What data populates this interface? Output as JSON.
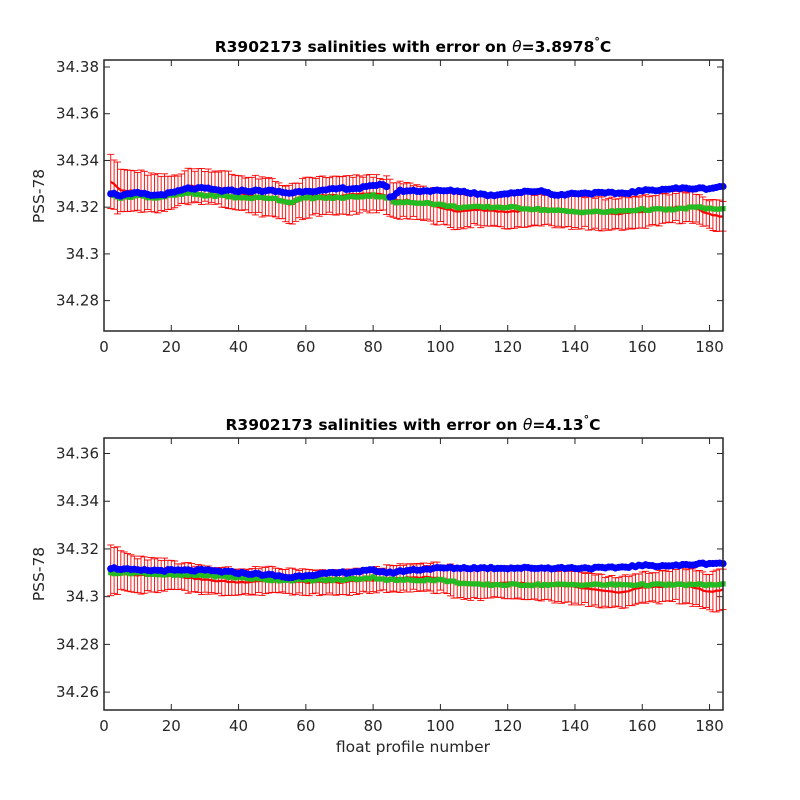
{
  "chart_data": [
    {
      "type": "line",
      "title_prefix": "R3902173 salinities with error on ",
      "title_theta": "θ",
      "title_value": "=3.8978",
      "title_degree": "°",
      "title_unit": "C",
      "xlabel": "",
      "ylabel": "PSS-78",
      "xlim": [
        0,
        184
      ],
      "ylim": [
        34.267,
        34.383
      ],
      "xticks": [
        0,
        20,
        40,
        60,
        80,
        100,
        120,
        140,
        160,
        180
      ],
      "yticks": [
        34.28,
        34.3,
        34.32,
        34.34,
        34.36,
        34.38
      ],
      "ytick_labels": [
        "34.28",
        "34.3",
        "34.32",
        "34.34",
        "34.36",
        "34.38"
      ],
      "x_range": [
        2,
        184
      ],
      "colors": {
        "blue": "#0000ff",
        "green": "#22bb22",
        "red": "#ff0000"
      },
      "series": [
        {
          "role": "blue-markers",
          "keypoints": [
            [
              2,
              34.326
            ],
            [
              5,
              34.325
            ],
            [
              10,
              34.326
            ],
            [
              15,
              34.325
            ],
            [
              20,
              34.326
            ],
            [
              25,
              34.328
            ],
            [
              30,
              34.328
            ],
            [
              35,
              34.327
            ],
            [
              40,
              34.327
            ],
            [
              45,
              34.327
            ],
            [
              50,
              34.327
            ],
            [
              55,
              34.326
            ],
            [
              60,
              34.327
            ],
            [
              65,
              34.327
            ],
            [
              70,
              34.328
            ],
            [
              75,
              34.328
            ],
            [
              80,
              34.329
            ],
            [
              82,
              34.33
            ],
            [
              84,
              34.329
            ],
            [
              85,
              34.324
            ],
            [
              86,
              34.325
            ],
            [
              88,
              34.327
            ],
            [
              95,
              34.327
            ],
            [
              100,
              34.327
            ],
            [
              105,
              34.327
            ],
            [
              110,
              34.326
            ],
            [
              115,
              34.325
            ],
            [
              120,
              34.326
            ],
            [
              130,
              34.327
            ],
            [
              135,
              34.325
            ],
            [
              140,
              34.326
            ],
            [
              150,
              34.326
            ],
            [
              155,
              34.326
            ],
            [
              160,
              34.327
            ],
            [
              170,
              34.328
            ],
            [
              180,
              34.328
            ],
            [
              184,
              34.329
            ]
          ]
        },
        {
          "role": "green-markers",
          "keypoints": [
            [
              2,
              34.326
            ],
            [
              5,
              34.324
            ],
            [
              10,
              34.325
            ],
            [
              15,
              34.324
            ],
            [
              20,
              34.325
            ],
            [
              25,
              34.326
            ],
            [
              30,
              34.325
            ],
            [
              35,
              34.325
            ],
            [
              40,
              34.324
            ],
            [
              50,
              34.324
            ],
            [
              55,
              34.322
            ],
            [
              60,
              34.324
            ],
            [
              65,
              34.324
            ],
            [
              70,
              34.324
            ],
            [
              80,
              34.325
            ],
            [
              85,
              34.324
            ],
            [
              86,
              34.322
            ],
            [
              88,
              34.322
            ],
            [
              95,
              34.322
            ],
            [
              100,
              34.321
            ],
            [
              105,
              34.32
            ],
            [
              110,
              34.32
            ],
            [
              120,
              34.32
            ],
            [
              130,
              34.319
            ],
            [
              140,
              34.318
            ],
            [
              150,
              34.318
            ],
            [
              160,
              34.319
            ],
            [
              170,
              34.319
            ],
            [
              175,
              34.32
            ],
            [
              184,
              34.319
            ]
          ]
        },
        {
          "role": "red-line",
          "keypoints": [
            [
              2,
              34.331
            ],
            [
              5,
              34.327
            ],
            [
              10,
              34.327
            ],
            [
              15,
              34.326
            ],
            [
              20,
              34.326
            ],
            [
              25,
              34.329
            ],
            [
              30,
              34.329
            ],
            [
              35,
              34.328
            ],
            [
              40,
              34.326
            ],
            [
              50,
              34.324
            ],
            [
              55,
              34.321
            ],
            [
              60,
              34.324
            ],
            [
              65,
              34.325
            ],
            [
              70,
              34.325
            ],
            [
              80,
              34.326
            ],
            [
              84,
              34.325
            ],
            [
              86,
              34.323
            ],
            [
              90,
              34.323
            ],
            [
              100,
              34.32
            ],
            [
              105,
              34.318
            ],
            [
              110,
              34.319
            ],
            [
              120,
              34.318
            ],
            [
              130,
              34.319
            ],
            [
              140,
              34.318
            ],
            [
              150,
              34.317
            ],
            [
              160,
              34.318
            ],
            [
              170,
              34.32
            ],
            [
              175,
              34.32
            ],
            [
              180,
              34.317
            ],
            [
              184,
              34.316
            ]
          ]
        }
      ],
      "error_half_width": [
        [
          2,
          0.012
        ],
        [
          5,
          0.009
        ],
        [
          20,
          0.007
        ],
        [
          60,
          0.008
        ],
        [
          100,
          0.007
        ],
        [
          140,
          0.007
        ],
        [
          184,
          0.006
        ]
      ]
    },
    {
      "type": "line",
      "title_prefix": "R3902173 salinities with error on ",
      "title_theta": "θ",
      "title_value": "=4.13",
      "title_degree": "°",
      "title_unit": "C",
      "xlabel": "float profile number",
      "ylabel": "PSS-78",
      "xlim": [
        0,
        184
      ],
      "ylim": [
        34.2525,
        34.3665
      ],
      "xticks": [
        0,
        20,
        40,
        60,
        80,
        100,
        120,
        140,
        160,
        180
      ],
      "yticks": [
        34.26,
        34.28,
        34.3,
        34.32,
        34.34,
        34.36
      ],
      "ytick_labels": [
        "34.26",
        "34.28",
        "34.3",
        "34.32",
        "34.34",
        "34.36"
      ],
      "x_range": [
        2,
        184
      ],
      "colors": {
        "blue": "#0000ff",
        "green": "#22bb22",
        "red": "#ff0000"
      },
      "series": [
        {
          "role": "blue-markers",
          "keypoints": [
            [
              2,
              34.312
            ],
            [
              10,
              34.311
            ],
            [
              20,
              34.311
            ],
            [
              30,
              34.311
            ],
            [
              40,
              34.31
            ],
            [
              50,
              34.309
            ],
            [
              55,
              34.308
            ],
            [
              60,
              34.309
            ],
            [
              70,
              34.31
            ],
            [
              80,
              34.311
            ],
            [
              85,
              34.31
            ],
            [
              90,
              34.311
            ],
            [
              100,
              34.312
            ],
            [
              110,
              34.312
            ],
            [
              120,
              34.312
            ],
            [
              130,
              34.312
            ],
            [
              140,
              34.312
            ],
            [
              150,
              34.312
            ],
            [
              160,
              34.313
            ],
            [
              170,
              34.313
            ],
            [
              180,
              34.314
            ],
            [
              184,
              34.314
            ]
          ]
        },
        {
          "role": "green-markers",
          "keypoints": [
            [
              2,
              34.31
            ],
            [
              10,
              34.31
            ],
            [
              20,
              34.309
            ],
            [
              30,
              34.309
            ],
            [
              40,
              34.308
            ],
            [
              50,
              34.307
            ],
            [
              55,
              34.307
            ],
            [
              60,
              34.307
            ],
            [
              70,
              34.307
            ],
            [
              80,
              34.308
            ],
            [
              85,
              34.307
            ],
            [
              90,
              34.307
            ],
            [
              100,
              34.307
            ],
            [
              105,
              34.306
            ],
            [
              110,
              34.305
            ],
            [
              120,
              34.305
            ],
            [
              130,
              34.305
            ],
            [
              140,
              34.305
            ],
            [
              150,
              34.305
            ],
            [
              160,
              34.305
            ],
            [
              170,
              34.305
            ],
            [
              180,
              34.305
            ],
            [
              184,
              34.305
            ]
          ]
        },
        {
          "role": "red-line",
          "keypoints": [
            [
              2,
              34.311
            ],
            [
              5,
              34.311
            ],
            [
              10,
              34.309
            ],
            [
              20,
              34.309
            ],
            [
              30,
              34.307
            ],
            [
              40,
              34.306
            ],
            [
              50,
              34.307
            ],
            [
              60,
              34.306
            ],
            [
              70,
              34.306
            ],
            [
              80,
              34.307
            ],
            [
              90,
              34.308
            ],
            [
              100,
              34.308
            ],
            [
              105,
              34.306
            ],
            [
              110,
              34.305
            ],
            [
              120,
              34.306
            ],
            [
              130,
              34.305
            ],
            [
              140,
              34.304
            ],
            [
              150,
              34.302
            ],
            [
              155,
              34.302
            ],
            [
              160,
              34.304
            ],
            [
              165,
              34.304
            ],
            [
              170,
              34.305
            ],
            [
              175,
              34.304
            ],
            [
              180,
              34.302
            ],
            [
              184,
              34.303
            ]
          ]
        }
      ],
      "error_half_width": [
        [
          2,
          0.011
        ],
        [
          5,
          0.008
        ],
        [
          20,
          0.006
        ],
        [
          60,
          0.005
        ],
        [
          80,
          0.005
        ],
        [
          100,
          0.006
        ],
        [
          140,
          0.007
        ],
        [
          160,
          0.006
        ],
        [
          184,
          0.008
        ]
      ]
    }
  ]
}
